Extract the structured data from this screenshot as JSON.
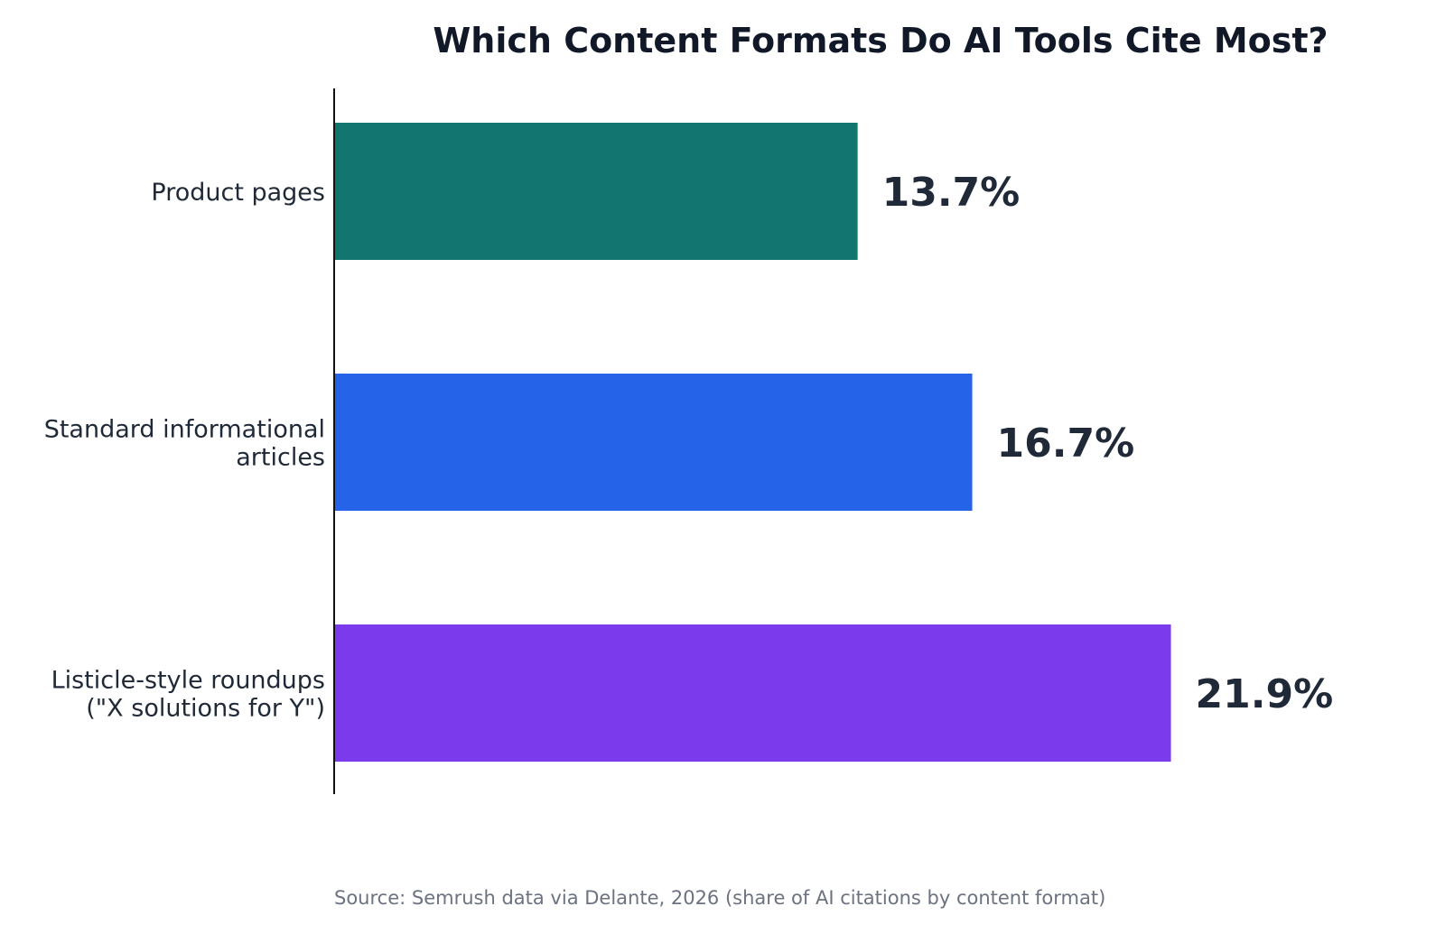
{
  "chart_data": {
    "type": "bar",
    "orientation": "horizontal",
    "title": "Which Content Formats Do AI Tools Cite Most?",
    "categories": [
      [
        "Product pages"
      ],
      [
        "Standard informational",
        "articles"
      ],
      [
        "Listicle-style roundups",
        "(\"X solutions for Y\")"
      ]
    ],
    "values": [
      13.7,
      16.7,
      21.9
    ],
    "value_labels": [
      "13.7%",
      "16.7%",
      "21.9%"
    ],
    "colors": [
      "#11766e",
      "#2563e8",
      "#7b3aeb"
    ],
    "xlabel": "",
    "ylabel": "",
    "xlim": [
      0,
      26
    ],
    "grid": false,
    "legend": "none",
    "source": "Source: Semrush data via Delante, 2026 (share of AI citations by content format)"
  }
}
